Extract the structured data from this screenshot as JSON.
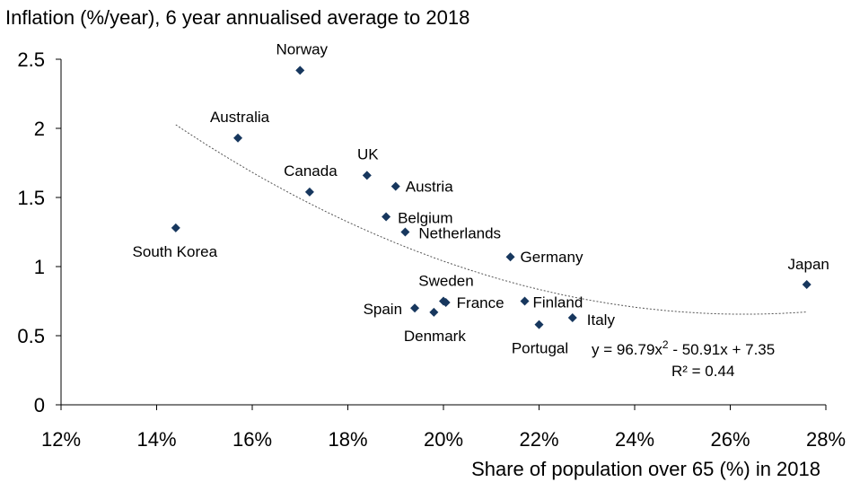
{
  "chart_data": {
    "type": "scatter",
    "title": "Inflation (%/year), 6 year annualised average to 2018",
    "xlabel": "Share of population over 65 (%) in 2018",
    "ylabel": "",
    "xlim": [
      0.12,
      0.28
    ],
    "ylim": [
      0,
      2.5
    ],
    "x_ticks": [
      "12%",
      "14%",
      "16%",
      "18%",
      "20%",
      "22%",
      "24%",
      "26%",
      "28%"
    ],
    "y_ticks": [
      "0",
      "0.5",
      "1",
      "1.5",
      "2",
      "2.5"
    ],
    "grid": false,
    "marker_color": "#17375e",
    "trendline_color": "#555555",
    "points": [
      {
        "label": "Norway",
        "x": 0.17,
        "y": 2.42
      },
      {
        "label": "Australia",
        "x": 0.157,
        "y": 1.93
      },
      {
        "label": "South Korea",
        "x": 0.144,
        "y": 1.28
      },
      {
        "label": "Canada",
        "x": 0.172,
        "y": 1.54
      },
      {
        "label": "UK",
        "x": 0.184,
        "y": 1.66
      },
      {
        "label": "Austria",
        "x": 0.19,
        "y": 1.58
      },
      {
        "label": "Belgium",
        "x": 0.188,
        "y": 1.36
      },
      {
        "label": "Netherlands",
        "x": 0.192,
        "y": 1.25
      },
      {
        "label": "Germany",
        "x": 0.214,
        "y": 1.07
      },
      {
        "label": "Japan",
        "x": 0.276,
        "y": 0.87
      },
      {
        "label": "Sweden",
        "x": 0.2,
        "y": 0.75
      },
      {
        "label": "France",
        "x": 0.2005,
        "y": 0.74
      },
      {
        "label": "Finland",
        "x": 0.217,
        "y": 0.75
      },
      {
        "label": "Spain",
        "x": 0.194,
        "y": 0.7
      },
      {
        "label": "Denmark",
        "x": 0.198,
        "y": 0.67
      },
      {
        "label": "Italy",
        "x": 0.227,
        "y": 0.63
      },
      {
        "label": "Portugal",
        "x": 0.22,
        "y": 0.58
      }
    ],
    "trendline": {
      "type": "polynomial",
      "order": 2,
      "coefficients": [
        96.79,
        -50.91,
        7.35
      ],
      "x_range": [
        0.144,
        0.276
      ]
    },
    "equation_prefix": "y = 96.79x",
    "equation_exp": "2",
    "equation_suffix": " - 50.91x + 7.35",
    "r_squared_text": "R² = 0.44"
  }
}
